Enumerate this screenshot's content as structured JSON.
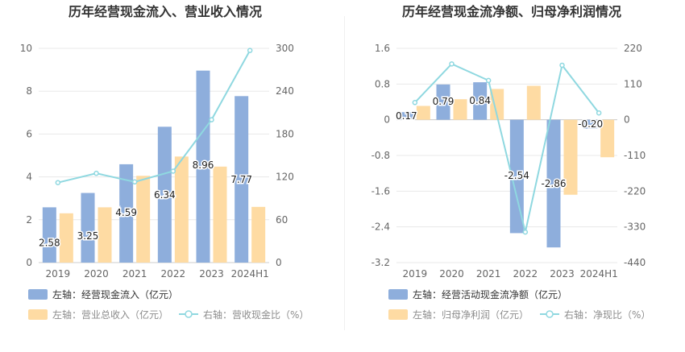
{
  "colors": {
    "bar_blue": "#8eaedc",
    "bar_orange": "#fedba3",
    "line_cyan": "#8fd8e0",
    "grid": "#e8e8e8",
    "axis_text": "#666666",
    "title_text": "#333333",
    "label_text": "#222222"
  },
  "chart_data": [
    {
      "type": "bar",
      "title": "历年经营现金流入、营业收入情况",
      "categories": [
        "2019",
        "2020",
        "2021",
        "2022",
        "2023",
        "2024H1"
      ],
      "left_axis": {
        "min": 0,
        "max": 10,
        "ticks": [
          "0",
          "2",
          "4",
          "6",
          "8",
          "10"
        ]
      },
      "right_axis": {
        "min": 0,
        "max": 300,
        "ticks": [
          "0",
          "60",
          "120",
          "180",
          "240",
          "300"
        ]
      },
      "series": [
        {
          "name": "左轴：经营现金流入（亿元）",
          "kind": "bar",
          "axis": "left",
          "color": "#8eaedc",
          "values": [
            2.58,
            3.25,
            4.59,
            6.34,
            8.96,
            7.77
          ],
          "labels": [
            "2.58",
            "3.25",
            "4.59",
            "6.34",
            "8.96",
            "7.77"
          ]
        },
        {
          "name": "左轴：营业总收入（亿元）",
          "kind": "bar",
          "axis": "left",
          "color": "#fedba3",
          "values": [
            2.3,
            2.58,
            4.05,
            4.95,
            4.48,
            2.6
          ]
        },
        {
          "name": "右轴：营收现金比（%）",
          "kind": "line",
          "axis": "right",
          "color": "#8fd8e0",
          "values": [
            112,
            125,
            113,
            128,
            200,
            297
          ]
        }
      ],
      "grid": true,
      "legend_position": "bottom-left"
    },
    {
      "type": "bar",
      "title": "历年经营现金流净额、归母净利润情况",
      "categories": [
        "2019",
        "2020",
        "2021",
        "2022",
        "2023",
        "2024H1"
      ],
      "left_axis": {
        "min": -3.2,
        "max": 1.6,
        "ticks": [
          "-3.2",
          "-2.4",
          "-1.6",
          "-0.8",
          "0",
          "0.8",
          "1.6"
        ]
      },
      "right_axis": {
        "min": -440,
        "max": 220,
        "ticks": [
          "-440",
          "-330",
          "-220",
          "-110",
          "0",
          "110",
          "220"
        ]
      },
      "series": [
        {
          "name": "左轴：经营活动现金流净额（亿元）",
          "kind": "bar",
          "axis": "left",
          "color": "#8eaedc",
          "values": [
            0.17,
            0.79,
            0.84,
            -2.54,
            -2.86,
            -0.2
          ],
          "labels": [
            "0.17",
            "0.79",
            "0.84",
            "-2.54",
            "-2.86",
            "-0.20"
          ]
        },
        {
          "name": "左轴：归母净利润（亿元）",
          "kind": "bar",
          "axis": "left",
          "color": "#fedba3",
          "values": [
            0.31,
            0.46,
            0.69,
            0.76,
            -1.68,
            -0.84
          ]
        },
        {
          "name": "右轴：净现比（%）",
          "kind": "line",
          "axis": "right",
          "color": "#8fd8e0",
          "values": [
            53,
            172,
            121,
            -346,
            168,
            21
          ]
        }
      ],
      "grid": true,
      "legend_position": "bottom-left"
    }
  ]
}
